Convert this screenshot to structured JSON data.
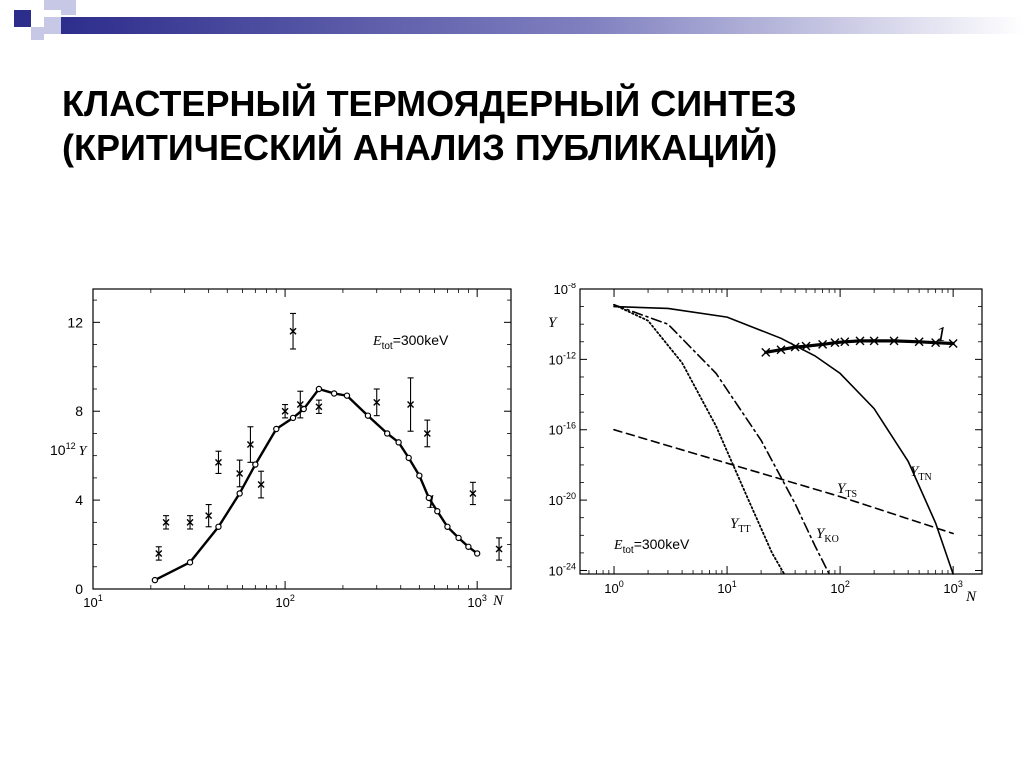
{
  "slide": {
    "title_line1": "КЛАСТЕРНЫЙ ТЕРМОЯДЕРНЫЙ СИНТЕЗ",
    "title_line2": "(КРИТИЧЕСКИЙ АНАЛИЗ ПУБЛИКАЦИЙ)",
    "accent_color": "#2d2d8c"
  },
  "chart_data": [
    {
      "type": "line",
      "x_scale": "log",
      "xlim": [
        10,
        1500
      ],
      "ylim": [
        0,
        13.5
      ],
      "xlabel": "N",
      "ylabel_prefix": "10",
      "ylabel_exp": "12",
      "ylabel_var": "Y",
      "x_ticks": [
        {
          "value": 10,
          "base": "10",
          "exp": "1"
        },
        {
          "value": 100,
          "base": "10",
          "exp": "2"
        },
        {
          "value": 1000,
          "base": "10",
          "exp": "3"
        }
      ],
      "y_ticks": [
        {
          "value": 0,
          "label": "0"
        },
        {
          "value": 4,
          "label": "4"
        },
        {
          "value": 8,
          "label": "8"
        },
        {
          "value": 12,
          "label": "12"
        }
      ],
      "annotation": {
        "E": "E",
        "sub": "tot",
        "rest": "=300keV"
      },
      "curve_label": "1",
      "series": [
        {
          "style": "line-open-circles",
          "x": [
            21,
            32,
            45,
            58,
            70,
            90,
            110,
            125,
            150,
            180,
            210,
            270,
            340,
            390,
            440,
            500,
            560,
            620,
            700,
            800,
            900,
            1000
          ],
          "y": [
            0.4,
            1.2,
            2.8,
            4.3,
            5.6,
            7.2,
            7.7,
            8.1,
            9.0,
            8.8,
            8.7,
            7.8,
            7.0,
            6.6,
            5.9,
            5.1,
            4.1,
            3.5,
            2.8,
            2.3,
            1.9,
            1.6
          ]
        },
        {
          "style": "x-markers-with-errors",
          "x": [
            22,
            24,
            32,
            40,
            45,
            58,
            66,
            75,
            100,
            110,
            120,
            150,
            300,
            450,
            550,
            950,
            1300
          ],
          "y": [
            1.6,
            3.0,
            3.0,
            3.3,
            5.7,
            5.2,
            6.5,
            4.7,
            8.0,
            11.6,
            8.3,
            8.2,
            8.4,
            8.3,
            7.0,
            4.3,
            1.8
          ],
          "err": [
            0.3,
            0.3,
            0.3,
            0.5,
            0.5,
            0.6,
            0.8,
            0.6,
            0.3,
            0.8,
            0.6,
            0.3,
            0.6,
            1.2,
            0.6,
            0.5,
            0.5
          ]
        }
      ]
    },
    {
      "type": "line",
      "x_scale": "log",
      "y_scale": "log",
      "xlim": [
        0.5,
        1800
      ],
      "ylim": [
        -24.2,
        -8
      ],
      "xlabel": "N",
      "ylabel": "Y",
      "x_ticks": [
        {
          "value": 1,
          "base": "10",
          "exp": "0"
        },
        {
          "value": 10,
          "base": "10",
          "exp": "1"
        },
        {
          "value": 100,
          "base": "10",
          "exp": "2"
        },
        {
          "value": 1000,
          "base": "10",
          "exp": "3"
        }
      ],
      "y_ticks": [
        {
          "value": -8,
          "base": "10",
          "exp": "-8"
        },
        {
          "value": -12,
          "base": "10",
          "exp": "-12"
        },
        {
          "value": -16,
          "base": "10",
          "exp": "-16"
        },
        {
          "value": -20,
          "base": "10",
          "exp": "-20"
        },
        {
          "value": -24,
          "base": "10",
          "exp": "-24"
        }
      ],
      "annotation": {
        "E": "E",
        "sub": "tot",
        "rest": "=300keV"
      },
      "series": [
        {
          "name": "TN",
          "label_main": "Y",
          "label_sub": "TN",
          "style": "solid",
          "x": [
            1,
            3,
            10,
            30,
            60,
            100,
            200,
            400,
            700,
            1000
          ],
          "y": [
            -9.0,
            -9.1,
            -9.6,
            -10.8,
            -11.8,
            -12.8,
            -14.8,
            -17.8,
            -21.3,
            -24.2
          ]
        },
        {
          "name": "TS",
          "label_main": "Y",
          "label_sub": "TS",
          "style": "dashed",
          "x": [
            1,
            10,
            100,
            1000
          ],
          "y": [
            -16.0,
            -17.9,
            -19.8,
            -21.9
          ]
        },
        {
          "name": "TT",
          "label_main": "Y",
          "label_sub": "TT",
          "style": "dotted",
          "x": [
            1,
            2,
            4,
            8,
            15,
            25,
            32
          ],
          "y": [
            -8.9,
            -9.8,
            -12.2,
            -15.8,
            -19.8,
            -23.0,
            -24.2
          ]
        },
        {
          "name": "KO",
          "label_main": "Y",
          "label_sub": "KO",
          "style": "dash-dot",
          "x": [
            1,
            3,
            8,
            20,
            40,
            60,
            80
          ],
          "y": [
            -8.9,
            -10.0,
            -12.8,
            -16.6,
            -20.2,
            -22.6,
            -24.2
          ]
        },
        {
          "name": "1",
          "label_main": "1",
          "style": "thick-x-markers",
          "x": [
            22,
            30,
            40,
            50,
            70,
            90,
            110,
            150,
            200,
            300,
            500,
            700,
            1000
          ],
          "y": [
            -11.6,
            -11.45,
            -11.3,
            -11.25,
            -11.15,
            -11.05,
            -11.0,
            -10.95,
            -10.95,
            -10.95,
            -11.0,
            -11.05,
            -11.1
          ]
        }
      ]
    }
  ]
}
